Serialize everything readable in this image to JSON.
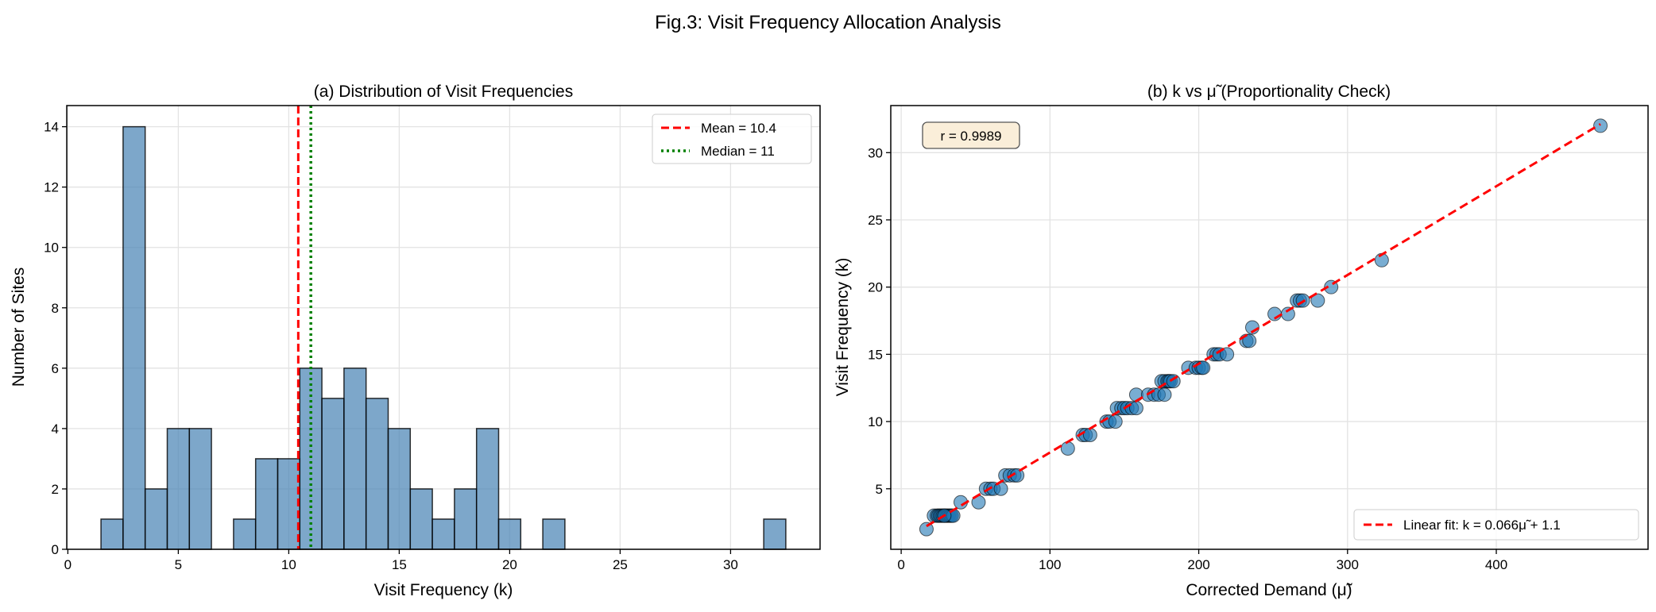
{
  "title": "Fig.3: Visit Frequency Allocation Analysis",
  "chart_data": [
    {
      "type": "bar",
      "title": "(a) Distribution of Visit Frequencies",
      "xlabel": "Visit Frequency (k)",
      "ylabel": "Number of Sites",
      "bin_width": 1,
      "bin_centers": [
        2,
        3,
        4,
        5,
        6,
        7,
        8,
        9,
        10,
        11,
        12,
        13,
        14,
        15,
        16,
        17,
        18,
        19,
        20,
        21,
        22,
        23,
        24,
        25,
        26,
        27,
        28,
        29,
        30,
        31,
        32
      ],
      "values": [
        1,
        14,
        2,
        4,
        4,
        0,
        1,
        3,
        3,
        6,
        5,
        6,
        5,
        4,
        2,
        1,
        2,
        4,
        1,
        0,
        1,
        0,
        0,
        0,
        0,
        0,
        0,
        0,
        0,
        0,
        1
      ],
      "xlim": [
        -0.05,
        34.05
      ],
      "ylim": [
        0,
        14.7
      ],
      "xticks": [
        0,
        5,
        10,
        15,
        20,
        25,
        30
      ],
      "yticks": [
        0,
        2,
        4,
        6,
        8,
        10,
        12,
        14
      ],
      "grid": true,
      "bar_color": "#4682b4",
      "vlines": [
        {
          "name": "Mean = 10.4",
          "x": 10.43,
          "color": "#ff0000",
          "style": "dashed"
        },
        {
          "name": "Median = 11",
          "x": 11,
          "color": "#008000",
          "style": "dotted"
        }
      ],
      "legend": "top-right"
    },
    {
      "type": "scatter",
      "title": "(b) k vs μ̃ (Proportionality Check)",
      "xlabel": "Corrected Demand (μ̃)",
      "ylabel": "Visit Frequency (k)",
      "xlim": [
        -7,
        502
      ],
      "ylim": [
        0.5,
        33.5
      ],
      "xticks": [
        0,
        100,
        200,
        300,
        400
      ],
      "yticks": [
        5,
        10,
        15,
        20,
        25,
        30
      ],
      "grid": true,
      "point_color": "#1f77b4",
      "annotation": "r = 0.9989",
      "fit": {
        "name": "Linear fit: k = 0.066μ̃ + 1.1",
        "slope": 0.066,
        "intercept": 1.1,
        "color": "#ff0000",
        "style": "dashed"
      },
      "legend": "lower-right",
      "points": [
        [
          17,
          2
        ],
        [
          22,
          3
        ],
        [
          24,
          3
        ],
        [
          25,
          3
        ],
        [
          26,
          3
        ],
        [
          27,
          3
        ],
        [
          28,
          3
        ],
        [
          29,
          3
        ],
        [
          30,
          3
        ],
        [
          31,
          3
        ],
        [
          32,
          3
        ],
        [
          33,
          3
        ],
        [
          34,
          3
        ],
        [
          35,
          3
        ],
        [
          29,
          3
        ],
        [
          40,
          4
        ],
        [
          52,
          4
        ],
        [
          57,
          5
        ],
        [
          60,
          5
        ],
        [
          62,
          5
        ],
        [
          67,
          5
        ],
        [
          70,
          6
        ],
        [
          73,
          6
        ],
        [
          76,
          6
        ],
        [
          78,
          6
        ],
        [
          112,
          8
        ],
        [
          122,
          9
        ],
        [
          124,
          9
        ],
        [
          127,
          9
        ],
        [
          138,
          10
        ],
        [
          140,
          10
        ],
        [
          144,
          10
        ],
        [
          145,
          11
        ],
        [
          148,
          11
        ],
        [
          150,
          11
        ],
        [
          152,
          11
        ],
        [
          155,
          11
        ],
        [
          158,
          11
        ],
        [
          158,
          12
        ],
        [
          166,
          12
        ],
        [
          170,
          12
        ],
        [
          173,
          12
        ],
        [
          177,
          12
        ],
        [
          175,
          13
        ],
        [
          177,
          13
        ],
        [
          179,
          13
        ],
        [
          180,
          13
        ],
        [
          181,
          13
        ],
        [
          183,
          13
        ],
        [
          193,
          14
        ],
        [
          198,
          14
        ],
        [
          200,
          14
        ],
        [
          202,
          14
        ],
        [
          203,
          14
        ],
        [
          210,
          15
        ],
        [
          212,
          15
        ],
        [
          214,
          15
        ],
        [
          219,
          15
        ],
        [
          232,
          16
        ],
        [
          234,
          16
        ],
        [
          236,
          17
        ],
        [
          251,
          18
        ],
        [
          260,
          18
        ],
        [
          266,
          19
        ],
        [
          268,
          19
        ],
        [
          270,
          19
        ],
        [
          280,
          19
        ],
        [
          289,
          20
        ],
        [
          323,
          22
        ],
        [
          470,
          32
        ]
      ]
    }
  ]
}
